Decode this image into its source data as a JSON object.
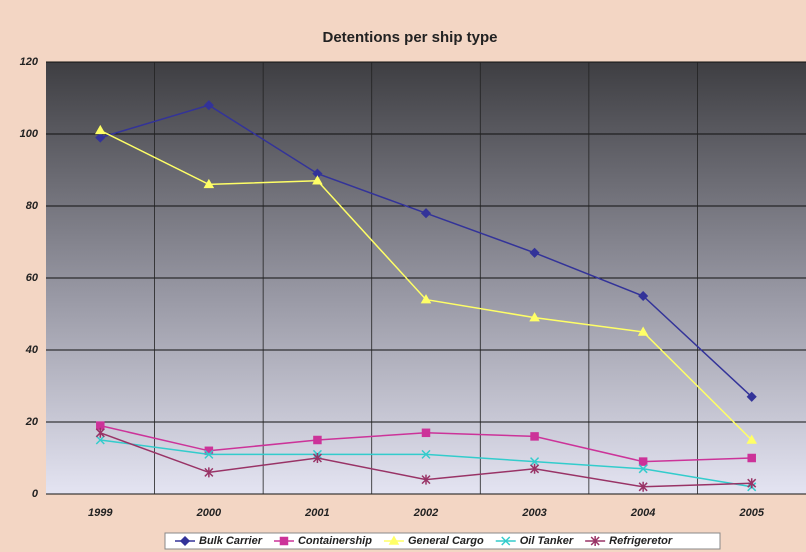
{
  "chart_data": {
    "type": "line",
    "title": "Detentions per ship type",
    "categories": [
      "1999",
      "2000",
      "2001",
      "2002",
      "2003",
      "2004",
      "2005"
    ],
    "series": [
      {
        "name": "Bulk Carrier",
        "color": "#333399",
        "marker": "diamond",
        "values": [
          99,
          108,
          89,
          78,
          67,
          55,
          27
        ]
      },
      {
        "name": "Containership",
        "color": "#cc3399",
        "marker": "square",
        "values": [
          19,
          12,
          15,
          17,
          16,
          9,
          10
        ]
      },
      {
        "name": "General Cargo",
        "color": "#ffff66",
        "marker": "triangle",
        "values": [
          101,
          86,
          87,
          54,
          49,
          45,
          15
        ]
      },
      {
        "name": "Oil Tanker",
        "color": "#33cccc",
        "marker": "x",
        "values": [
          15,
          11,
          11,
          11,
          9,
          7,
          2
        ]
      },
      {
        "name": "Refrigeretor",
        "color": "#993366",
        "marker": "star",
        "values": [
          17,
          6,
          10,
          4,
          7,
          2,
          3
        ]
      }
    ],
    "ylim": [
      0,
      120
    ],
    "yticks": [
      0,
      20,
      40,
      60,
      80,
      100,
      120
    ],
    "grid": true,
    "legend": "bottom"
  }
}
